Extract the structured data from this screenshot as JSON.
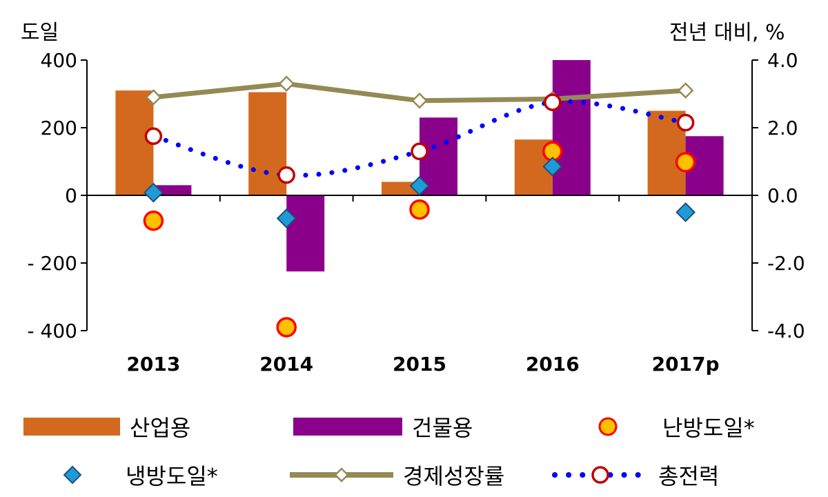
{
  "chart_data": {
    "type": "bar",
    "categories": [
      "2013",
      "2014",
      "2015",
      "2016",
      "2017p"
    ],
    "left_axis": {
      "label": "도일",
      "ylim": [
        -400,
        400
      ],
      "ticks": [
        "400",
        "200",
        "0",
        "- 200",
        "- 400"
      ],
      "tick_values": [
        400,
        200,
        0,
        -200,
        -400
      ]
    },
    "right_axis": {
      "label": "전년 대비, %",
      "ylim": [
        -4.0,
        4.0
      ],
      "ticks": [
        "4.0",
        "2.0",
        "0.0",
        "-2.0",
        "-4.0"
      ],
      "tick_values": [
        4,
        2,
        0,
        -2,
        -4
      ]
    },
    "series": [
      {
        "name": "산업용",
        "type": "bar",
        "axis": "left",
        "color": "#D2691E",
        "values": [
          310,
          305,
          40,
          165,
          250
        ]
      },
      {
        "name": "건물용",
        "type": "bar",
        "axis": "left",
        "color": "#8B008B",
        "values": [
          30,
          -225,
          230,
          400,
          175
        ]
      },
      {
        "name": "난방도일*",
        "type": "marker-circle",
        "axis": "left",
        "color": "#FFC000",
        "edge": "#FF0000",
        "values": [
          -75,
          -390,
          -42,
          130,
          98
        ]
      },
      {
        "name": "냉방도일*",
        "type": "marker-diamond",
        "axis": "left",
        "color": "#1E9BD7",
        "edge": "#1F4E79",
        "values": [
          8,
          -68,
          28,
          85,
          -50
        ]
      },
      {
        "name": "경제성장률",
        "type": "line",
        "axis": "right",
        "color": "#948A54",
        "values": [
          2.9,
          3.3,
          2.8,
          2.85,
          3.1
        ]
      },
      {
        "name": "총전력",
        "type": "dotted-line",
        "axis": "right",
        "color": "#0000FF",
        "marker_edge": "#C00000",
        "values": [
          1.75,
          0.6,
          1.3,
          2.75,
          2.15
        ]
      }
    ],
    "grid": false,
    "legend": "bottom"
  }
}
